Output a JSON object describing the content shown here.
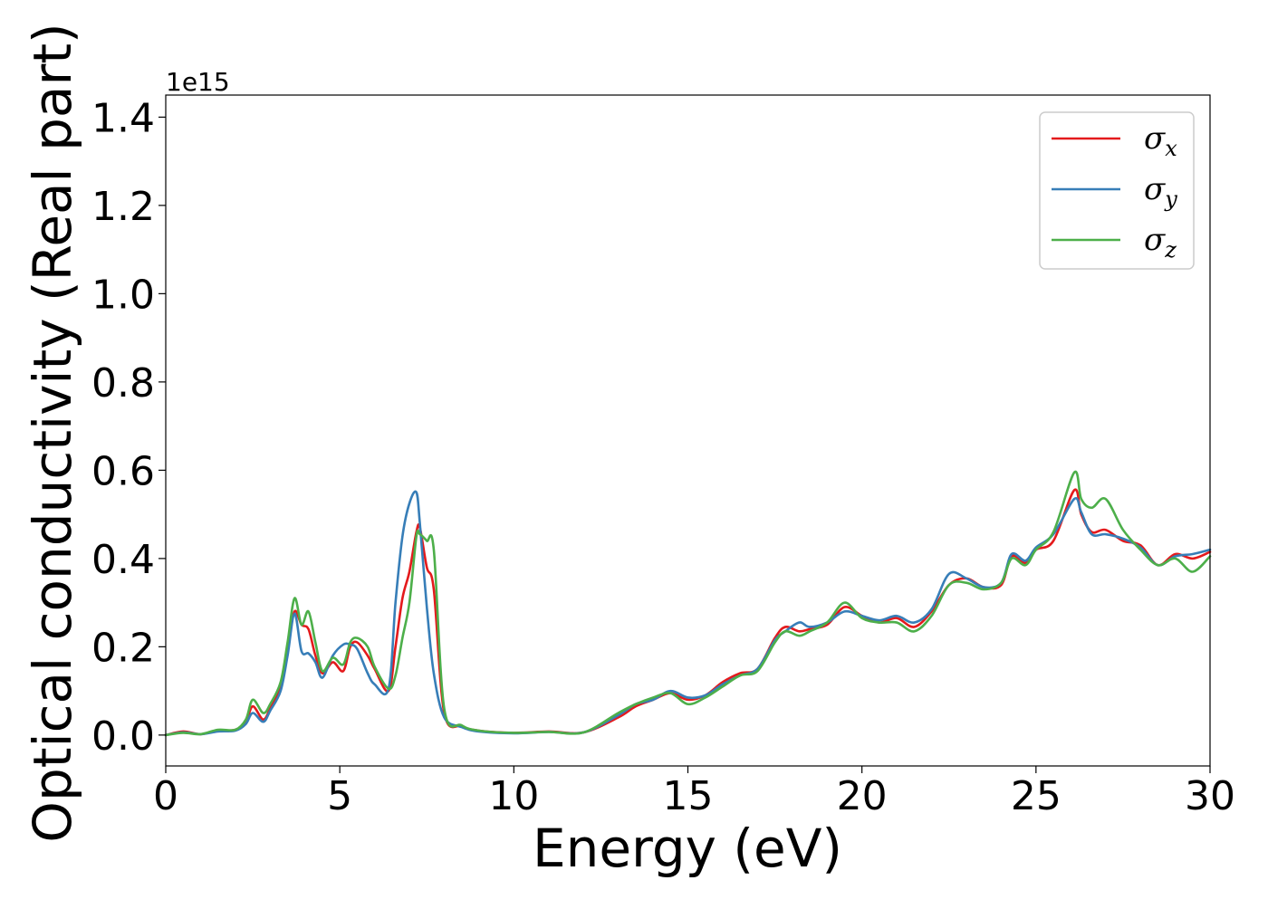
{
  "chart_data": {
    "type": "line",
    "xlabel": "Energy (eV)",
    "ylabel": "Optical conductivity (Real part)",
    "y_offset_label": "1e15",
    "xlim": [
      0,
      30
    ],
    "ylim": [
      -0.07,
      1.45
    ],
    "x_ticks": [
      0,
      5,
      10,
      15,
      20,
      25,
      30
    ],
    "x_tick_labels": [
      "0",
      "5",
      "10",
      "15",
      "20",
      "25",
      "30"
    ],
    "y_ticks": [
      0.0,
      0.2,
      0.4,
      0.6,
      0.8,
      1.0,
      1.2,
      1.4
    ],
    "y_tick_labels": [
      "0.0",
      "0.2",
      "0.4",
      "0.6",
      "0.8",
      "1.0",
      "1.2",
      "1.4"
    ],
    "grid": false,
    "legend_position": "top-right",
    "series": [
      {
        "name": "σx",
        "legend_symbol": "σ",
        "legend_subscript": "x",
        "color": "#e41a1c",
        "points": [
          [
            0,
            0.0
          ],
          [
            0.5,
            0.008
          ],
          [
            1,
            0.002
          ],
          [
            1.5,
            0.01
          ],
          [
            2,
            0.012
          ],
          [
            2.3,
            0.03
          ],
          [
            2.5,
            0.065
          ],
          [
            2.8,
            0.035
          ],
          [
            3,
            0.06
          ],
          [
            3.3,
            0.11
          ],
          [
            3.5,
            0.2
          ],
          [
            3.7,
            0.28
          ],
          [
            3.9,
            0.25
          ],
          [
            4.1,
            0.24
          ],
          [
            4.3,
            0.18
          ],
          [
            4.5,
            0.14
          ],
          [
            4.8,
            0.165
          ],
          [
            5.1,
            0.145
          ],
          [
            5.3,
            0.2
          ],
          [
            5.5,
            0.21
          ],
          [
            5.8,
            0.18
          ],
          [
            6,
            0.15
          ],
          [
            6.4,
            0.1
          ],
          [
            6.6,
            0.2
          ],
          [
            6.8,
            0.31
          ],
          [
            7.0,
            0.37
          ],
          [
            7.2,
            0.46
          ],
          [
            7.3,
            0.47
          ],
          [
            7.5,
            0.38
          ],
          [
            7.7,
            0.33
          ],
          [
            8,
            0.05
          ],
          [
            8.5,
            0.02
          ],
          [
            9,
            0.01
          ],
          [
            10,
            0.005
          ],
          [
            11,
            0.008
          ],
          [
            12,
            0.006
          ],
          [
            13,
            0.04
          ],
          [
            13.5,
            0.065
          ],
          [
            14,
            0.08
          ],
          [
            14.5,
            0.095
          ],
          [
            15,
            0.08
          ],
          [
            15.5,
            0.09
          ],
          [
            16,
            0.12
          ],
          [
            16.5,
            0.14
          ],
          [
            17,
            0.15
          ],
          [
            17.5,
            0.22
          ],
          [
            17.8,
            0.245
          ],
          [
            18.2,
            0.235
          ],
          [
            18.5,
            0.24
          ],
          [
            19,
            0.25
          ],
          [
            19.5,
            0.29
          ],
          [
            20,
            0.27
          ],
          [
            20.5,
            0.255
          ],
          [
            21,
            0.265
          ],
          [
            21.5,
            0.245
          ],
          [
            22,
            0.28
          ],
          [
            22.5,
            0.34
          ],
          [
            23,
            0.355
          ],
          [
            23.5,
            0.335
          ],
          [
            24,
            0.34
          ],
          [
            24.3,
            0.405
          ],
          [
            24.7,
            0.39
          ],
          [
            25,
            0.42
          ],
          [
            25.5,
            0.44
          ],
          [
            26.1,
            0.555
          ],
          [
            26.3,
            0.5
          ],
          [
            26.6,
            0.46
          ],
          [
            27,
            0.465
          ],
          [
            27.5,
            0.44
          ],
          [
            28,
            0.43
          ],
          [
            28.5,
            0.385
          ],
          [
            29,
            0.41
          ],
          [
            29.5,
            0.4
          ],
          [
            30,
            0.415
          ]
        ]
      },
      {
        "name": "σy",
        "legend_symbol": "σ",
        "legend_subscript": "y",
        "color": "#377eb8",
        "points": [
          [
            0,
            0.0
          ],
          [
            0.5,
            0.006
          ],
          [
            1,
            0.002
          ],
          [
            1.5,
            0.008
          ],
          [
            2,
            0.01
          ],
          [
            2.3,
            0.025
          ],
          [
            2.5,
            0.05
          ],
          [
            2.8,
            0.03
          ],
          [
            3,
            0.055
          ],
          [
            3.3,
            0.1
          ],
          [
            3.5,
            0.18
          ],
          [
            3.7,
            0.275
          ],
          [
            3.9,
            0.19
          ],
          [
            4.1,
            0.185
          ],
          [
            4.3,
            0.165
          ],
          [
            4.5,
            0.13
          ],
          [
            4.8,
            0.18
          ],
          [
            5.1,
            0.205
          ],
          [
            5.3,
            0.205
          ],
          [
            5.5,
            0.195
          ],
          [
            5.8,
            0.14
          ],
          [
            6,
            0.115
          ],
          [
            6.4,
            0.105
          ],
          [
            6.6,
            0.3
          ],
          [
            6.8,
            0.45
          ],
          [
            7.0,
            0.525
          ],
          [
            7.2,
            0.55
          ],
          [
            7.3,
            0.48
          ],
          [
            7.5,
            0.29
          ],
          [
            7.7,
            0.14
          ],
          [
            8,
            0.04
          ],
          [
            8.5,
            0.018
          ],
          [
            9,
            0.008
          ],
          [
            10,
            0.004
          ],
          [
            11,
            0.007
          ],
          [
            12,
            0.006
          ],
          [
            13,
            0.045
          ],
          [
            13.5,
            0.07
          ],
          [
            14,
            0.08
          ],
          [
            14.5,
            0.1
          ],
          [
            15,
            0.085
          ],
          [
            15.5,
            0.09
          ],
          [
            16,
            0.115
          ],
          [
            16.5,
            0.135
          ],
          [
            17,
            0.15
          ],
          [
            17.5,
            0.215
          ],
          [
            17.8,
            0.235
          ],
          [
            18.2,
            0.255
          ],
          [
            18.5,
            0.245
          ],
          [
            19,
            0.255
          ],
          [
            19.5,
            0.28
          ],
          [
            20,
            0.27
          ],
          [
            20.5,
            0.26
          ],
          [
            21,
            0.27
          ],
          [
            21.5,
            0.255
          ],
          [
            22,
            0.285
          ],
          [
            22.5,
            0.365
          ],
          [
            23,
            0.355
          ],
          [
            23.5,
            0.335
          ],
          [
            24,
            0.345
          ],
          [
            24.3,
            0.41
          ],
          [
            24.7,
            0.395
          ],
          [
            25,
            0.425
          ],
          [
            25.5,
            0.455
          ],
          [
            26.1,
            0.535
          ],
          [
            26.3,
            0.505
          ],
          [
            26.6,
            0.455
          ],
          [
            27,
            0.455
          ],
          [
            27.5,
            0.445
          ],
          [
            28,
            0.425
          ],
          [
            28.5,
            0.385
          ],
          [
            29,
            0.405
          ],
          [
            29.5,
            0.41
          ],
          [
            30,
            0.42
          ]
        ]
      },
      {
        "name": "σz",
        "legend_symbol": "σ",
        "legend_subscript": "z",
        "color": "#4daf4a",
        "points": [
          [
            0,
            0.0
          ],
          [
            0.5,
            0.005
          ],
          [
            1,
            0.002
          ],
          [
            1.5,
            0.012
          ],
          [
            2,
            0.012
          ],
          [
            2.3,
            0.035
          ],
          [
            2.5,
            0.08
          ],
          [
            2.8,
            0.05
          ],
          [
            3,
            0.07
          ],
          [
            3.3,
            0.12
          ],
          [
            3.5,
            0.21
          ],
          [
            3.7,
            0.31
          ],
          [
            3.9,
            0.25
          ],
          [
            4.1,
            0.28
          ],
          [
            4.3,
            0.21
          ],
          [
            4.5,
            0.145
          ],
          [
            4.8,
            0.175
          ],
          [
            5.1,
            0.16
          ],
          [
            5.3,
            0.21
          ],
          [
            5.5,
            0.22
          ],
          [
            5.8,
            0.2
          ],
          [
            6,
            0.155
          ],
          [
            6.4,
            0.105
          ],
          [
            6.6,
            0.135
          ],
          [
            6.8,
            0.22
          ],
          [
            7.0,
            0.3
          ],
          [
            7.2,
            0.45
          ],
          [
            7.3,
            0.455
          ],
          [
            7.5,
            0.44
          ],
          [
            7.7,
            0.42
          ],
          [
            8,
            0.06
          ],
          [
            8.5,
            0.022
          ],
          [
            9,
            0.01
          ],
          [
            10,
            0.005
          ],
          [
            11,
            0.007
          ],
          [
            12,
            0.006
          ],
          [
            13,
            0.05
          ],
          [
            13.5,
            0.07
          ],
          [
            14,
            0.085
          ],
          [
            14.5,
            0.095
          ],
          [
            15,
            0.07
          ],
          [
            15.5,
            0.085
          ],
          [
            16,
            0.11
          ],
          [
            16.5,
            0.135
          ],
          [
            17,
            0.145
          ],
          [
            17.5,
            0.21
          ],
          [
            17.8,
            0.235
          ],
          [
            18.2,
            0.225
          ],
          [
            18.5,
            0.235
          ],
          [
            19,
            0.255
          ],
          [
            19.5,
            0.3
          ],
          [
            20,
            0.265
          ],
          [
            20.5,
            0.255
          ],
          [
            21,
            0.255
          ],
          [
            21.5,
            0.235
          ],
          [
            22,
            0.27
          ],
          [
            22.5,
            0.34
          ],
          [
            23,
            0.345
          ],
          [
            23.5,
            0.33
          ],
          [
            24,
            0.345
          ],
          [
            24.3,
            0.4
          ],
          [
            24.7,
            0.385
          ],
          [
            25,
            0.42
          ],
          [
            25.5,
            0.46
          ],
          [
            26.1,
            0.595
          ],
          [
            26.3,
            0.535
          ],
          [
            26.6,
            0.515
          ],
          [
            27,
            0.535
          ],
          [
            27.5,
            0.465
          ],
          [
            28,
            0.42
          ],
          [
            28.5,
            0.385
          ],
          [
            29,
            0.4
          ],
          [
            29.5,
            0.37
          ],
          [
            30,
            0.405
          ]
        ]
      }
    ]
  }
}
